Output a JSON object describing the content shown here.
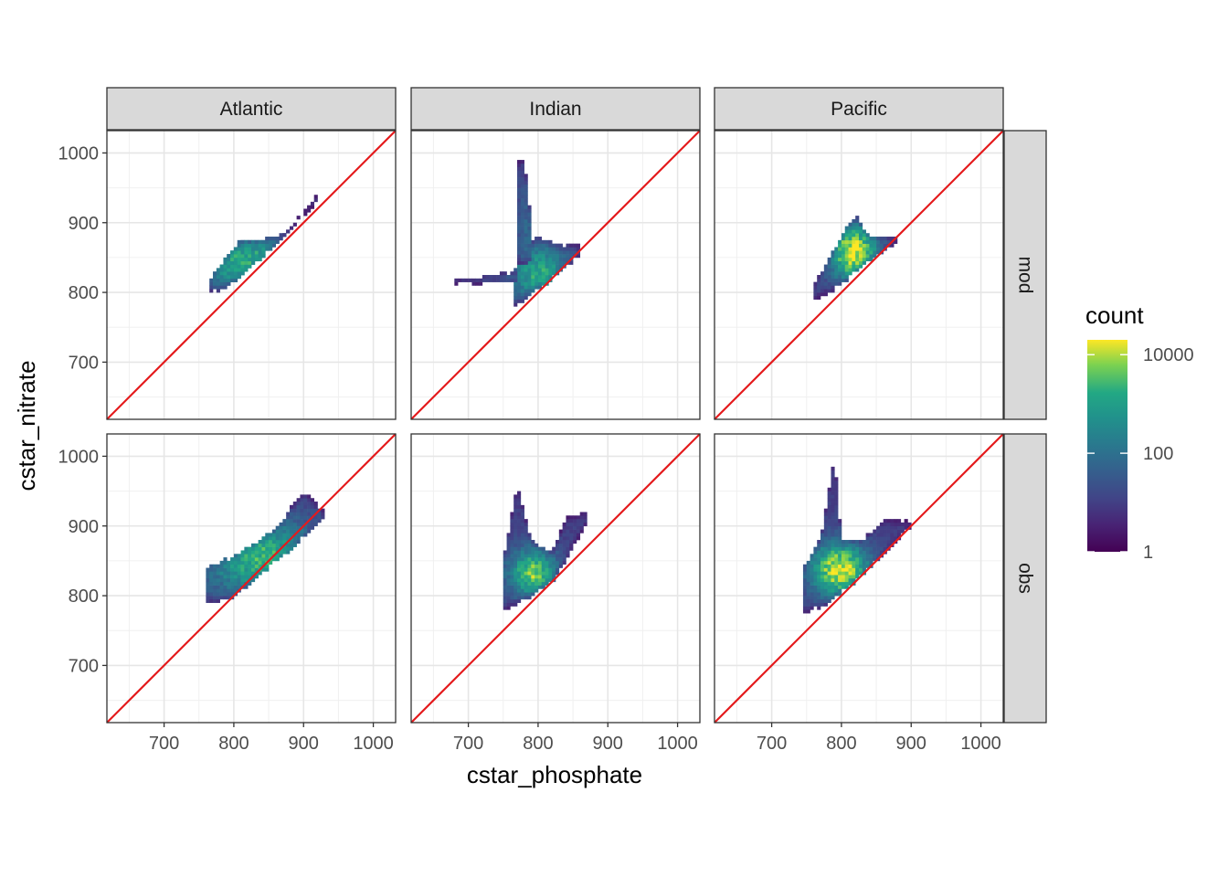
{
  "chart_data": {
    "type": "heatmap",
    "subtype": "faceted 2d-bin count",
    "xlabel": "cstar_phosphate",
    "ylabel": "cstar_nitrate",
    "xlim": [
      618,
      1032
    ],
    "ylim": [
      618,
      1032
    ],
    "x_ticks": [
      700,
      800,
      900,
      1000
    ],
    "y_ticks": [
      700,
      800,
      900,
      1000
    ],
    "grid": true,
    "columns": [
      "Atlantic",
      "Indian",
      "Pacific"
    ],
    "rows": [
      "mod",
      "obs"
    ],
    "reference_line": {
      "slope": 1,
      "intercept": 0,
      "color": "#e41a1c"
    },
    "legend": {
      "title": "count",
      "scale": "log10",
      "ticks": [
        {
          "value": 1,
          "label": "1"
        },
        {
          "value": 100,
          "label": "100"
        },
        {
          "value": 10000,
          "label": "10000"
        }
      ],
      "range": [
        1,
        20000
      ],
      "palette": "viridis",
      "position": "right"
    },
    "bin_width": 5,
    "panels": [
      {
        "column": "Atlantic",
        "row": "mod",
        "clusters": [
          {
            "x": [
              [
                765,
                800
              ],
              [
                780,
                830
              ],
              [
                800,
                850
              ],
              [
                830,
                880
              ],
              [
                860,
                920
              ]
            ],
            "y_lo": [
              [
                765,
                800
              ],
              [
                780,
                800
              ],
              [
                800,
                812
              ],
              [
                830,
                838
              ],
              [
                860,
                866
              ],
              [
                920,
                926
              ]
            ],
            "y_hi": [
              [
                765,
                815
              ],
              [
                790,
                850
              ],
              [
                810,
                873
              ],
              [
                860,
                876
              ],
              [
                880,
                890
              ],
              [
                920,
                940
              ]
            ],
            "peak": 0.62,
            "center": [
              820,
              840
            ],
            "spread": [
              55,
              30
            ]
          }
        ]
      },
      {
        "column": "Indian",
        "row": "mod",
        "clusters": [
          {
            "x": [
              [
                765,
                790
              ],
              [
                790,
                820
              ],
              [
                820,
                860
              ]
            ],
            "y_lo": [
              [
                765,
                775
              ],
              [
                790,
                795
              ],
              [
                820,
                815
              ],
              [
                860,
                850
              ]
            ],
            "y_hi": [
              [
                765,
                830
              ],
              [
                775,
                850
              ],
              [
                800,
                880
              ],
              [
                820,
                870
              ],
              [
                860,
                865
              ]
            ],
            "peak": 0.6,
            "center": [
              800,
              825
            ],
            "spread": [
              30,
              30
            ]
          },
          {
            "x": [
              [
                770,
                790
              ]
            ],
            "y_lo": [
              [
                770,
                840
              ],
              [
                790,
                840
              ]
            ],
            "y_hi": [
              [
                770,
                985
              ],
              [
                780,
                990
              ],
              [
                790,
                900
              ]
            ],
            "peak": 0.22,
            "center": [
              780,
              870
            ],
            "spread": [
              10,
              60
            ]
          },
          {
            "x": [
              [
                680,
                770
              ]
            ],
            "y_lo": [
              [
                680,
                808
              ],
              [
                720,
                810
              ],
              [
                770,
                812
              ]
            ],
            "y_hi": [
              [
                680,
                820
              ],
              [
                720,
                820
              ],
              [
                770,
                830
              ]
            ],
            "peak": 0.2,
            "center": [
              760,
              818
            ],
            "spread": [
              40,
              8
            ]
          }
        ]
      },
      {
        "column": "Pacific",
        "row": "mod",
        "clusters": [
          {
            "x": [
              [
                760,
                790
              ],
              [
                790,
                820
              ],
              [
                820,
                880
              ]
            ],
            "y_lo": [
              [
                760,
                785
              ],
              [
                790,
                800
              ],
              [
                820,
                825
              ],
              [
                880,
                870
              ]
            ],
            "y_hi": [
              [
                760,
                810
              ],
              [
                790,
                860
              ],
              [
                810,
                895
              ],
              [
                820,
                910
              ],
              [
                840,
                880
              ],
              [
                880,
                880
              ]
            ],
            "peak": 0.9,
            "center": [
              815,
              855
            ],
            "spread": [
              25,
              30
            ]
          }
        ]
      },
      {
        "column": "Atlantic",
        "row": "obs",
        "clusters": [
          {
            "x": [
              [
                760,
                800
              ],
              [
                800,
                860
              ],
              [
                860,
                930
              ]
            ],
            "y_lo": [
              [
                760,
                785
              ],
              [
                800,
                795
              ],
              [
                860,
                845
              ],
              [
                930,
                905
              ]
            ],
            "y_hi": [
              [
                760,
                840
              ],
              [
                800,
                855
              ],
              [
                860,
                895
              ],
              [
                900,
                950
              ],
              [
                930,
                920
              ]
            ],
            "peak": 0.65,
            "center": [
              840,
              850
            ],
            "spread": [
              60,
              40
            ]
          }
        ]
      },
      {
        "column": "Indian",
        "row": "obs",
        "clusters": [
          {
            "x": [
              [
                750,
                780
              ],
              [
                780,
                820
              ],
              [
                820,
                870
              ]
            ],
            "y_lo": [
              [
                750,
                775
              ],
              [
                780,
                790
              ],
              [
                820,
                815
              ],
              [
                870,
                900
              ]
            ],
            "y_hi": [
              [
                750,
                850
              ],
              [
                770,
                960
              ],
              [
                790,
                880
              ],
              [
                820,
                860
              ],
              [
                840,
                910
              ],
              [
                870,
                920
              ]
            ],
            "peak": 0.75,
            "center": [
              790,
              830
            ],
            "spread": [
              25,
              25
            ]
          }
        ]
      },
      {
        "column": "Pacific",
        "row": "obs",
        "clusters": [
          {
            "x": [
              [
                745,
                780
              ],
              [
                780,
                830
              ],
              [
                830,
                900
              ]
            ],
            "y_lo": [
              [
                745,
                770
              ],
              [
                780,
                785
              ],
              [
                830,
                825
              ],
              [
                900,
                895
              ]
            ],
            "y_hi": [
              [
                745,
                840
              ],
              [
                770,
                880
              ],
              [
                790,
                1000
              ],
              [
                800,
                880
              ],
              [
                830,
                880
              ],
              [
                860,
                910
              ],
              [
                900,
                905
              ]
            ],
            "peak": 0.9,
            "center": [
              795,
              835
            ],
            "spread": [
              30,
              28
            ]
          }
        ]
      }
    ]
  }
}
